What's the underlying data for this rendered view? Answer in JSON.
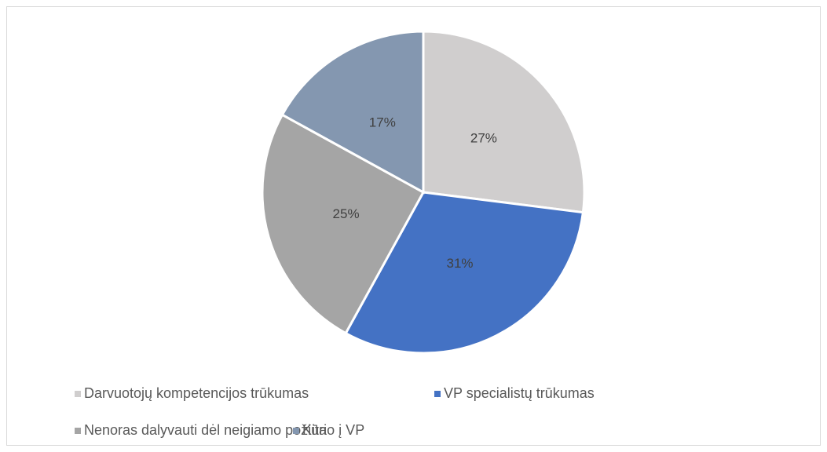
{
  "chart_data": {
    "type": "pie",
    "categories": [
      "Darvuotojų kompetencijos trūkumas",
      "VP specialistų trūkumas",
      "Nenoras dalyvauti dėl neigiamo požiūrio į VP",
      "Kita"
    ],
    "values": [
      27,
      31,
      25,
      17
    ],
    "value_labels": [
      "27%",
      "31%",
      "25%",
      "17%"
    ],
    "colors": [
      "#d0cece",
      "#4472c4",
      "#a5a5a5",
      "#8497b0"
    ],
    "legend": "bottom"
  }
}
